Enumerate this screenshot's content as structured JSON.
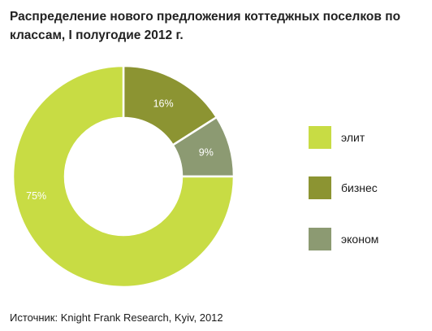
{
  "title": "Распределение нового предложения коттеджных поселков по клас­сам, I полугодие 2012 г.",
  "source": "Источник: Knight Frank Research, Kyiv, 2012",
  "chart_data": {
    "type": "pie",
    "variant": "donut",
    "series": [
      {
        "name": "элит",
        "value": 75,
        "label": "75%",
        "color": "#c8dc44"
      },
      {
        "name": "бизнес",
        "value": 16,
        "label": "16%",
        "color": "#8c9432"
      },
      {
        "name": "эконом",
        "value": 9,
        "label": "9%",
        "color": "#8c9a72"
      }
    ],
    "legend_position": "right"
  }
}
